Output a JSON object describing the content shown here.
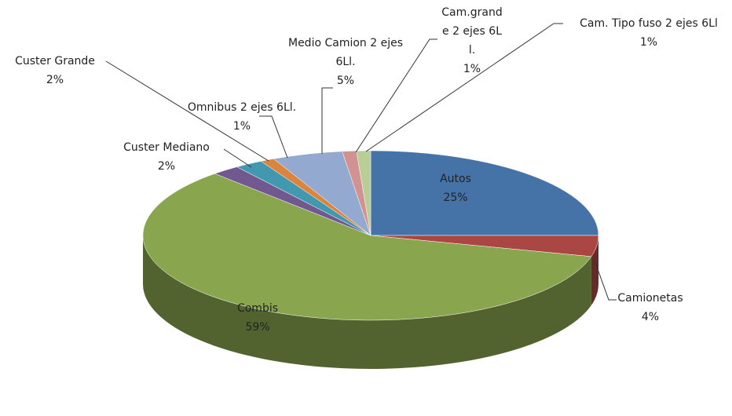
{
  "chart_data": {
    "type": "pie3d",
    "categories": [
      "Autos",
      "Camionetas",
      "Combis",
      "Custer Mediano",
      "Custer Grande",
      "Omnibus 2 ejes 6Ll.",
      "Medio Camion 2 ejes 6Ll.",
      "Cam.grande 2 ejes 6Ll.",
      "Cam. Tipo fuso 2 ejes 6Ll"
    ],
    "values": [
      25,
      4,
      59,
      2,
      2,
      1,
      5,
      1,
      1
    ],
    "value_labels": [
      "25%",
      "4%",
      "59%",
      "2%",
      "2%",
      "1%",
      "5%",
      "1%",
      "1%"
    ],
    "colors": [
      "#4572a7",
      "#aa4643",
      "#89a54e",
      "#71588f",
      "#4198af",
      "#db843d",
      "#93a9cf",
      "#d19392",
      "#b9cd96"
    ]
  }
}
